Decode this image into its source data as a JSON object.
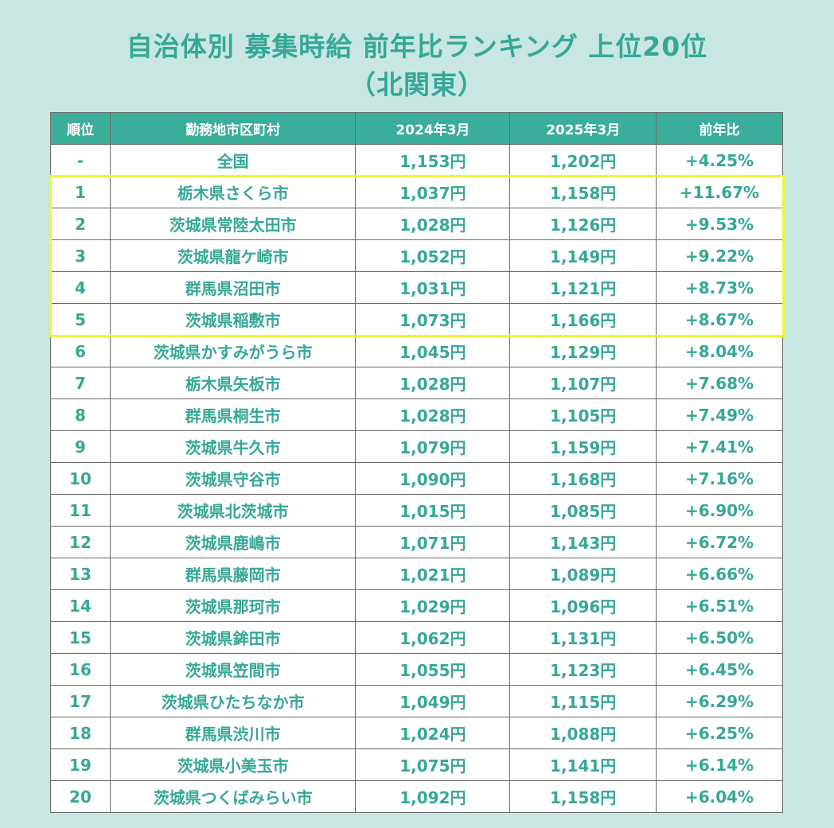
{
  "title_line1": "自治体別 募集時給 前年比ランキング 上位20位",
  "title_line2": "（北関東）",
  "highlight_color": "#eef534",
  "headers": [
    "順位",
    "勤務地市区町村",
    "2024年3月",
    "2025年3月",
    "前年比"
  ],
  "rows": [
    [
      "-",
      "全国",
      "1,153円",
      "1,202円",
      "+4.25%"
    ],
    [
      "1",
      "栃木県さくら市",
      "1,037円",
      "1,158円",
      "+11.67%"
    ],
    [
      "2",
      "茨城県常陸太田市",
      "1,028円",
      "1,126円",
      "+9.53%"
    ],
    [
      "3",
      "茨城県龍ケ崎市",
      "1,052円",
      "1,149円",
      "+9.22%"
    ],
    [
      "4",
      "群馬県沼田市",
      "1,031円",
      "1,121円",
      "+8.73%"
    ],
    [
      "5",
      "茨城県稲敷市",
      "1,073円",
      "1,166円",
      "+8.67%"
    ],
    [
      "6",
      "茨城県かすみがうら市",
      "1,045円",
      "1,129円",
      "+8.04%"
    ],
    [
      "7",
      "栃木県矢板市",
      "1,028円",
      "1,107円",
      "+7.68%"
    ],
    [
      "8",
      "群馬県桐生市",
      "1,028円",
      "1,105円",
      "+7.49%"
    ],
    [
      "9",
      "茨城県牛久市",
      "1,079円",
      "1,159円",
      "+7.41%"
    ],
    [
      "10",
      "茨城県守谷市",
      "1,090円",
      "1,168円",
      "+7.16%"
    ],
    [
      "11",
      "茨城県北茨城市",
      "1,015円",
      "1,085円",
      "+6.90%"
    ],
    [
      "12",
      "茨城県鹿嶋市",
      "1,071円",
      "1,143円",
      "+6.72%"
    ],
    [
      "13",
      "群馬県藤岡市",
      "1,021円",
      "1,089円",
      "+6.66%"
    ],
    [
      "14",
      "茨城県那珂市",
      "1,029円",
      "1,096円",
      "+6.51%"
    ],
    [
      "15",
      "茨城県鉾田市",
      "1,062円",
      "1,131円",
      "+6.50%"
    ],
    [
      "16",
      "茨城県笠間市",
      "1,055円",
      "1,123円",
      "+6.45%"
    ],
    [
      "17",
      "茨城県ひたちなか市",
      "1,049円",
      "1,115円",
      "+6.29%"
    ],
    [
      "18",
      "群馬県渋川市",
      "1,024円",
      "1,088円",
      "+6.25%"
    ],
    [
      "19",
      "茨城県小美玉市",
      "1,075円",
      "1,141円",
      "+6.14%"
    ],
    [
      "20",
      "茨城県つくばみらい市",
      "1,092円",
      "1,158円",
      "+6.04%"
    ]
  ]
}
